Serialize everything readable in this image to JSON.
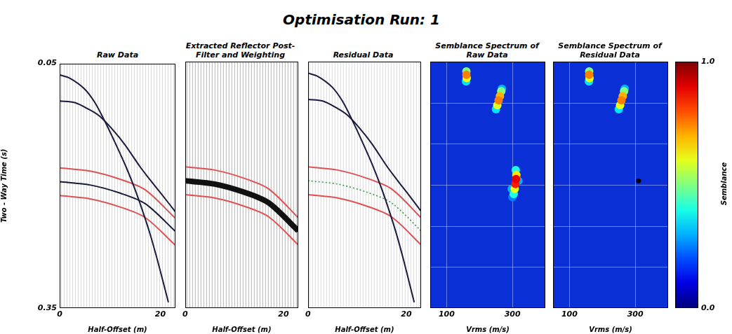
{
  "title": "Optimisation Run: 1",
  "chart_data": [
    {
      "type": "line",
      "title": "Raw Data",
      "x_label": "Half-Offset (m)",
      "y_label": "Two - Way Time (s)",
      "xlim": [
        0,
        23
      ],
      "xticks": [
        0,
        20
      ],
      "ylim": [
        0.05,
        0.35
      ],
      "yticks": [
        0.05,
        0.35
      ],
      "grid": false,
      "series": [
        {
          "color": "#1a1a40",
          "line_style": "solid",
          "values": [
            [
              0,
              0.064
            ],
            [
              2,
              0.068
            ],
            [
              4.9,
              0.081
            ],
            [
              7,
              0.098
            ],
            [
              9.1,
              0.1225
            ],
            [
              11,
              0.147
            ],
            [
              13.2,
              0.177
            ],
            [
              15,
              0.205
            ],
            [
              16.7,
              0.235
            ],
            [
              18,
              0.26
            ],
            [
              19.5,
              0.293
            ],
            [
              21.6,
              0.343
            ]
          ]
        },
        {
          "color": "#1a1a40",
          "line_style": "solid",
          "values": [
            [
              0,
              0.096
            ],
            [
              3,
              0.098
            ],
            [
              6,
              0.107
            ],
            [
              8,
              0.115
            ],
            [
              10.5,
              0.131
            ],
            [
              13,
              0.15
            ],
            [
              16,
              0.177
            ],
            [
              18,
              0.193
            ],
            [
              20.2,
              0.21
            ],
            [
              23,
              0.232
            ]
          ]
        },
        {
          "color": "#1a1a40",
          "line_style": "solid",
          "values": [
            [
              0,
              0.195
            ],
            [
              6,
              0.199
            ],
            [
              12,
              0.209
            ],
            [
              17,
              0.222
            ],
            [
              23,
              0.256
            ]
          ]
        },
        {
          "color": "#e05050",
          "line_style": "solid",
          "values": [
            [
              0,
              0.178
            ],
            [
              6,
              0.182
            ],
            [
              12,
              0.192
            ],
            [
              17,
              0.205
            ],
            [
              23,
              0.24
            ]
          ]
        },
        {
          "color": "#e05050",
          "line_style": "solid",
          "values": [
            [
              0,
              0.212
            ],
            [
              6,
              0.216
            ],
            [
              12,
              0.226
            ],
            [
              17,
              0.239
            ],
            [
              23,
              0.273
            ]
          ]
        },
        {
          "color": "#2e9e3e",
          "line_style": "dotted",
          "values": [
            [
              0,
              0.195
            ],
            [
              6,
              0.199
            ],
            [
              12,
              0.209
            ],
            [
              17,
              0.222
            ],
            [
              23,
              0.256
            ]
          ]
        }
      ]
    },
    {
      "type": "line",
      "title": "Extracted Reflector Post-Filter and Weighting",
      "x_label": "Half-Offset (m)",
      "xlim": [
        0,
        23
      ],
      "xticks": [
        0,
        20
      ],
      "ylim": [
        0.05,
        0.35
      ],
      "grid": false,
      "tick_labels": "x",
      "series": [
        {
          "color": "#111111",
          "line_style": "thick",
          "values": [
            [
              0,
              0.195
            ],
            [
              6,
              0.199
            ],
            [
              12,
              0.209
            ],
            [
              17,
              0.222
            ],
            [
              23,
              0.256
            ]
          ]
        },
        {
          "color": "#e05050",
          "line_style": "solid",
          "values": [
            [
              0,
              0.178
            ],
            [
              6,
              0.182
            ],
            [
              12,
              0.192
            ],
            [
              17,
              0.205
            ],
            [
              23,
              0.24
            ]
          ]
        },
        {
          "color": "#e05050",
          "line_style": "solid",
          "values": [
            [
              0,
              0.212
            ],
            [
              6,
              0.216
            ],
            [
              12,
              0.226
            ],
            [
              17,
              0.239
            ],
            [
              23,
              0.273
            ]
          ]
        }
      ]
    },
    {
      "type": "line",
      "title": "Residual Data",
      "x_label": "Half-Offset (m)",
      "xlim": [
        0,
        23
      ],
      "xticks": [
        0,
        20
      ],
      "ylim": [
        0.05,
        0.35
      ],
      "grid": false,
      "tick_labels": "x",
      "series": [
        {
          "color": "#1a1a40",
          "line_style": "solid",
          "values": [
            [
              0,
              0.064
            ],
            [
              2,
              0.068
            ],
            [
              4.9,
              0.081
            ],
            [
              7,
              0.098
            ],
            [
              9.1,
              0.1225
            ],
            [
              11,
              0.147
            ],
            [
              13.2,
              0.177
            ],
            [
              15,
              0.205
            ],
            [
              16.7,
              0.235
            ],
            [
              18,
              0.26
            ],
            [
              19.5,
              0.293
            ],
            [
              21.6,
              0.343
            ]
          ]
        },
        {
          "color": "#1a1a40",
          "line_style": "solid",
          "values": [
            [
              0,
              0.096
            ],
            [
              3,
              0.098
            ],
            [
              6,
              0.107
            ],
            [
              8,
              0.115
            ],
            [
              10.5,
              0.131
            ],
            [
              13,
              0.15
            ],
            [
              16,
              0.177
            ],
            [
              18,
              0.193
            ],
            [
              20.2,
              0.21
            ],
            [
              23,
              0.232
            ]
          ]
        },
        {
          "color": "#e05050",
          "line_style": "solid",
          "values": [
            [
              0,
              0.178
            ],
            [
              6,
              0.182
            ],
            [
              12,
              0.192
            ],
            [
              17,
              0.205
            ],
            [
              23,
              0.24
            ]
          ]
        },
        {
          "color": "#e05050",
          "line_style": "solid",
          "values": [
            [
              0,
              0.212
            ],
            [
              6,
              0.216
            ],
            [
              12,
              0.226
            ],
            [
              17,
              0.239
            ],
            [
              23,
              0.273
            ]
          ]
        },
        {
          "color": "#2e9e3e",
          "line_style": "dotted",
          "values": [
            [
              0,
              0.195
            ],
            [
              6,
              0.199
            ],
            [
              12,
              0.209
            ],
            [
              17,
              0.222
            ],
            [
              23,
              0.256
            ]
          ]
        }
      ]
    },
    {
      "type": "heatmap",
      "title": "Semblance Spectrum of Raw Data",
      "x_label": "Vrms (m/s)",
      "xlim": [
        50,
        400
      ],
      "xticks": [
        100,
        300
      ],
      "ylim": [
        0.05,
        0.35
      ],
      "yticks": [
        0.1,
        0.15,
        0.2,
        0.25,
        0.3
      ],
      "grid": true,
      "tick_labels": "x",
      "semblance": [
        [
          159,
          0.074,
          0.35
        ],
        [
          160,
          0.062,
          0.5
        ],
        [
          161,
          0.07,
          0.6
        ],
        [
          160,
          0.066,
          0.75
        ],
        [
          250,
          0.108,
          0.35
        ],
        [
          268,
          0.083,
          0.3
        ],
        [
          254,
          0.103,
          0.6
        ],
        [
          266,
          0.086,
          0.5
        ],
        [
          262,
          0.092,
          0.7
        ],
        [
          258,
          0.097,
          0.75
        ],
        [
          300,
          0.215,
          0.25
        ],
        [
          318,
          0.195,
          0.3
        ],
        [
          298,
          0.205,
          0.3
        ],
        [
          304,
          0.211,
          0.4
        ],
        [
          310,
          0.182,
          0.4
        ],
        [
          307,
          0.205,
          0.6
        ],
        [
          312,
          0.188,
          0.65
        ],
        [
          309,
          0.199,
          0.85
        ],
        [
          311,
          0.193,
          0.9
        ]
      ],
      "series": [
        {
          "color": "#000000",
          "marker": "circle",
          "values": [
            [
              310,
              0.195
            ]
          ]
        }
      ]
    },
    {
      "type": "heatmap",
      "title": "Semblance Spectrum of Residual Data",
      "x_label": "Vrms (m/s)",
      "xlim": [
        50,
        400
      ],
      "xticks": [
        100,
        300
      ],
      "ylim": [
        0.05,
        0.35
      ],
      "yticks": [
        0.1,
        0.15,
        0.2,
        0.25,
        0.3
      ],
      "grid": true,
      "tick_labels": "x",
      "semblance": [
        [
          159,
          0.074,
          0.35
        ],
        [
          160,
          0.062,
          0.5
        ],
        [
          161,
          0.07,
          0.6
        ],
        [
          160,
          0.066,
          0.75
        ],
        [
          250,
          0.108,
          0.35
        ],
        [
          268,
          0.083,
          0.3
        ],
        [
          254,
          0.103,
          0.6
        ],
        [
          266,
          0.086,
          0.5
        ],
        [
          262,
          0.092,
          0.7
        ],
        [
          258,
          0.097,
          0.75
        ]
      ],
      "series": [
        {
          "color": "#000000",
          "marker": "circle",
          "values": [
            [
              310,
              0.195
            ]
          ]
        }
      ]
    }
  ],
  "colorbar": {
    "label": "Semblance",
    "range": [
      0,
      1
    ],
    "ticks": [
      {
        "value": 0,
        "label": "0.0"
      },
      {
        "value": 1,
        "label": "1.0"
      }
    ]
  }
}
